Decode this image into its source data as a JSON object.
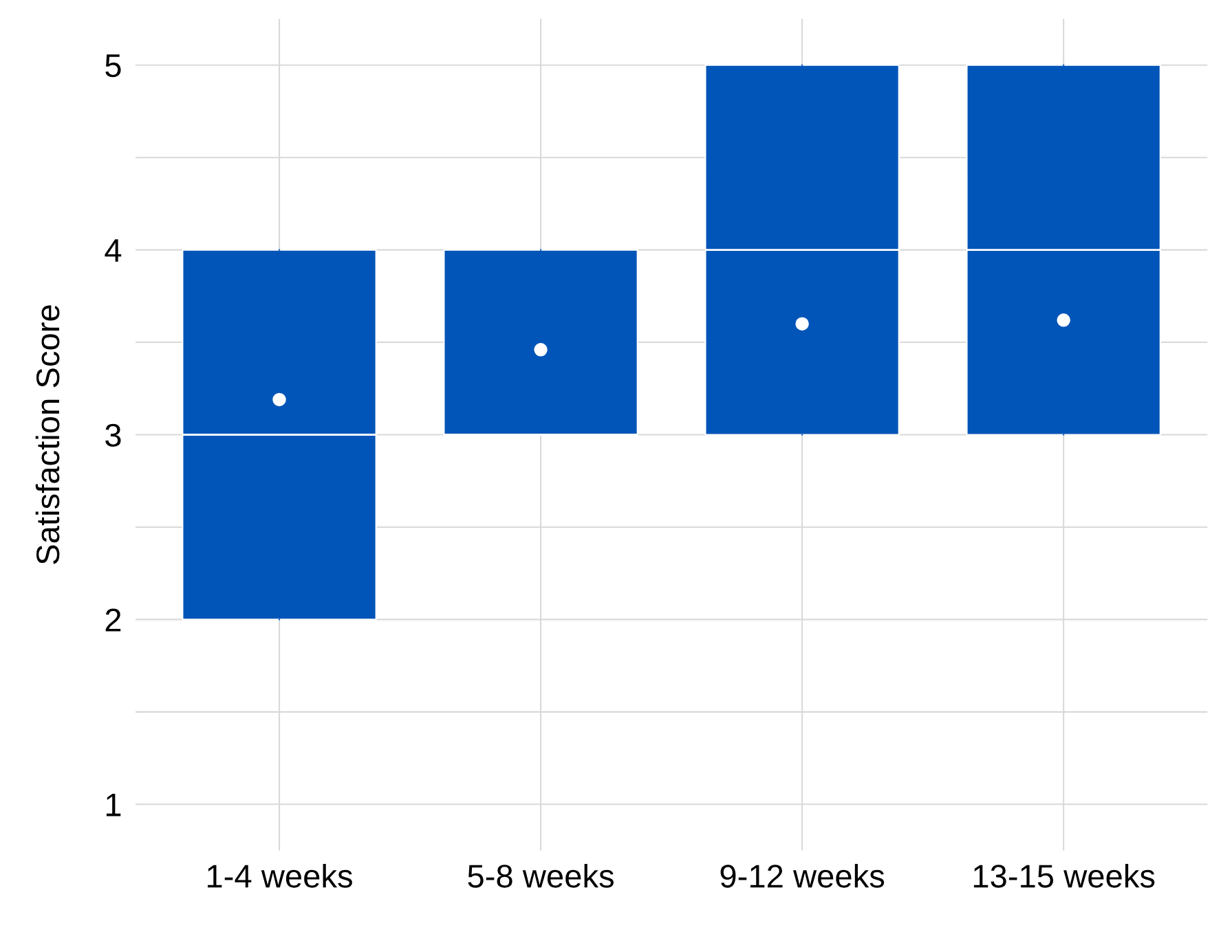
{
  "chart_data": {
    "type": "box",
    "ylabel": "Satisfaction Score",
    "categories": [
      "1-4 weeks",
      "5-8 weeks",
      "9-12 weeks",
      "13-15 weeks"
    ],
    "boxes": [
      {
        "low": 2,
        "q1": 2,
        "median": 3,
        "q3": 4,
        "high": 4,
        "mean": 3.19
      },
      {
        "low": 3,
        "q1": 3,
        "median": 3,
        "q3": 4,
        "high": 4,
        "mean": 3.46
      },
      {
        "low": 3,
        "q1": 3,
        "median": 4,
        "q3": 5,
        "high": 5,
        "mean": 3.6
      },
      {
        "low": 3,
        "q1": 3,
        "median": 4,
        "q3": 5,
        "high": 5,
        "mean": 3.62
      }
    ],
    "color": "#0255b8",
    "ylim": [
      0.75,
      5.25
    ],
    "yticks": [
      1,
      {
        "value": 1.5,
        "label": null
      },
      2,
      {
        "value": 2.5,
        "label": null
      },
      3,
      {
        "value": 3.5,
        "label": null
      },
      4,
      {
        "value": 4.5,
        "label": null
      },
      5
    ],
    "grid": true
  }
}
